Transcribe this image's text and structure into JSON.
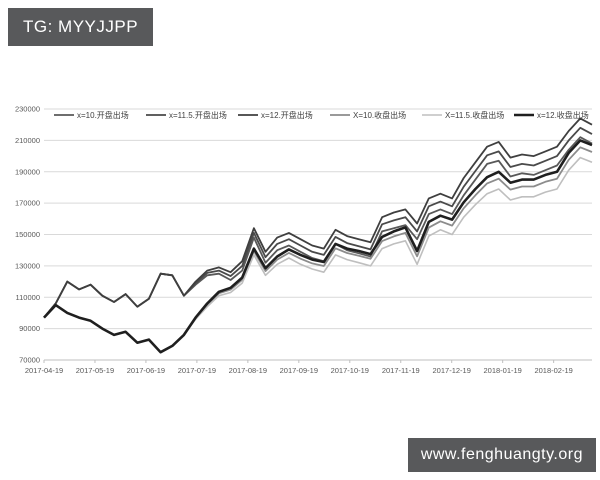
{
  "header": {
    "badge": "TG: MYYJJPP"
  },
  "footer": {
    "badge": "www.fenghuangty.org"
  },
  "colors": {
    "badge_bg": "#58595b",
    "badge_text": "#ffffff",
    "background": "#ffffff",
    "gridline": "#d9d9d9",
    "axis_line": "#bfbfbf",
    "axis_label": "#595959",
    "legend_text": "#404040"
  },
  "chart_data": {
    "type": "line",
    "title": "",
    "xlabel": "",
    "ylabel": "",
    "grid": true,
    "legend_position": "top",
    "ylim": [
      70000,
      230000
    ],
    "y_tick_step": 20000,
    "y_tick_labels": [
      "70000",
      "90000",
      "110000",
      "130000",
      "150000",
      "170000",
      "190000",
      "210000",
      "230000"
    ],
    "x_tick_labels": [
      "2017-04-19",
      "2017-05-19",
      "2017-06-19",
      "2017-07-19",
      "2017-08-19",
      "2017-09-19",
      "2017-10-19",
      "2017-11-19",
      "2017-12-19",
      "2018-01-19",
      "2018-02-19"
    ],
    "x_tick_fraction_step": 0.093,
    "series": [
      {
        "name": "x=10.开盘出场",
        "color": "#595959",
        "stroke_width": 1.8,
        "values": [
          97000,
          106000,
          120000,
          115000,
          118000,
          111000,
          107000,
          112000,
          104000,
          109000,
          125000,
          124000,
          111000,
          118000,
          124000,
          125000,
          121000,
          127000,
          148000,
          132000,
          140000,
          143000,
          139000,
          135000,
          133000,
          144000,
          140000,
          138000,
          136000,
          152000,
          154000,
          156000,
          147000,
          163000,
          166000,
          163000,
          175000,
          185000,
          195000,
          197000,
          187000,
          189000,
          188000,
          191000,
          194000,
          204000,
          212000,
          208000
        ]
      },
      {
        "name": "x=11.5.开盘出场",
        "color": "#4a4a4a",
        "stroke_width": 1.8,
        "values": [
          97000,
          106000,
          120000,
          115000,
          118000,
          111000,
          107000,
          112000,
          104000,
          109000,
          125000,
          124000,
          111000,
          119000,
          125500,
          127000,
          123500,
          130000,
          151000,
          135500,
          144000,
          147000,
          143000,
          139000,
          137000,
          148500,
          144500,
          142500,
          140500,
          156500,
          159000,
          161000,
          152000,
          168000,
          171000,
          168000,
          180500,
          190500,
          200500,
          203000,
          193000,
          195000,
          194000,
          197000,
          200000,
          210000,
          218000,
          214000
        ]
      },
      {
        "name": "x=12.开盘出场",
        "color": "#3f3f3f",
        "stroke_width": 1.8,
        "values": [
          97000,
          106000,
          120000,
          115000,
          118000,
          111000,
          107000,
          112000,
          104000,
          109000,
          125000,
          124000,
          111000,
          120000,
          127000,
          129000,
          126000,
          133000,
          154000,
          139000,
          148000,
          151000,
          147000,
          143000,
          141000,
          153000,
          149000,
          147000,
          145000,
          161000,
          164000,
          166000,
          157000,
          173000,
          176000,
          173000,
          186000,
          196000,
          206000,
          209000,
          199000,
          201000,
          200000,
          203000,
          206000,
          216000,
          224000,
          220000
        ]
      },
      {
        "name": "X=10.收盘出场",
        "color": "#8c8c8c",
        "stroke_width": 1.8,
        "values": [
          97000,
          105000,
          100000,
          97000,
          95000,
          90000,
          86000,
          88000,
          81000,
          83000,
          75000,
          79000,
          86000,
          96600,
          105200,
          112500,
          114800,
          121100,
          139400,
          126700,
          134000,
          138300,
          134600,
          131600,
          129900,
          141200,
          138200,
          136500,
          134500,
          145800,
          148800,
          151100,
          136100,
          154400,
          158400,
          155700,
          166700,
          175000,
          182600,
          185600,
          178600,
          180600,
          180600,
          183600,
          185600,
          197600,
          205600,
          202600
        ]
      },
      {
        "name": "X=11.5.收盘出场",
        "color": "#bfbfbf",
        "stroke_width": 1.6,
        "values": [
          97000,
          105000,
          100000,
          97000,
          95000,
          90000,
          86000,
          88000,
          81000,
          83000,
          75000,
          79000,
          86000,
          96000,
          104000,
          111000,
          113000,
          119000,
          137000,
          124000,
          131000,
          135000,
          131000,
          128000,
          126000,
          137000,
          134000,
          132000,
          130000,
          141000,
          144000,
          146000,
          131000,
          149000,
          153000,
          150000,
          161000,
          169000,
          176000,
          179000,
          172000,
          174000,
          174000,
          177000,
          179000,
          191000,
          199000,
          196000
        ]
      },
      {
        "name": "x=12.收盘出场",
        "color": "#1f1f1f",
        "stroke_width": 2.6,
        "values": [
          97000,
          105000,
          100000,
          97000,
          95000,
          90000,
          86000,
          88000,
          81000,
          83000,
          75000,
          79000,
          86000,
          97000,
          106000,
          113500,
          116000,
          122500,
          141000,
          128500,
          136000,
          140500,
          137000,
          134000,
          132500,
          144000,
          141000,
          139500,
          137500,
          148500,
          152000,
          154500,
          139500,
          158000,
          162000,
          159500,
          170500,
          179000,
          186500,
          190000,
          183000,
          185000,
          185000,
          188000,
          190000,
          202000,
          210000,
          207000
        ]
      }
    ]
  }
}
